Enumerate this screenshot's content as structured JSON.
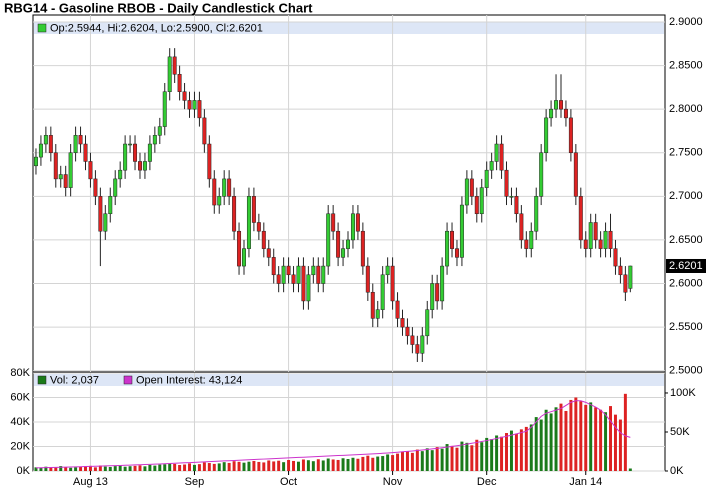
{
  "chart_data": [
    {
      "type": "candlestick",
      "title": "RBG14 - Gasoline RBOB - Daily Candlestick Chart",
      "legend_label": "Op:2.5944, Hi:2.6204, Lo:2.5900, Cl:2.6201",
      "last_label": "2.6201",
      "up_color": "#33cc33",
      "down_color": "#dd2222",
      "grid": true,
      "xlim": [
        -0.6,
        127
      ],
      "ylim": [
        2.4985,
        2.908
      ],
      "yticks": [
        {
          "value": 2.9,
          "label": "2.9000"
        },
        {
          "value": 2.85,
          "label": "2.8500"
        },
        {
          "value": 2.8,
          "label": "2.8000"
        },
        {
          "value": 2.75,
          "label": "2.7500"
        },
        {
          "value": 2.7,
          "label": "2.7000"
        },
        {
          "value": 2.65,
          "label": "2.6500"
        },
        {
          "value": 2.6,
          "label": "2.6000"
        },
        {
          "value": 2.55,
          "label": "2.5500"
        },
        {
          "value": 2.5,
          "label": "2.5000"
        }
      ],
      "open": [
        2.735,
        2.745,
        2.76,
        2.77,
        2.75,
        2.72,
        2.725,
        2.71,
        2.75,
        2.77,
        2.76,
        2.74,
        2.72,
        2.7,
        2.66,
        2.68,
        2.7,
        2.72,
        2.73,
        2.76,
        2.76,
        2.74,
        2.73,
        2.74,
        2.76,
        2.77,
        2.78,
        2.82,
        2.86,
        2.84,
        2.82,
        2.81,
        2.8,
        2.81,
        2.79,
        2.76,
        2.72,
        2.69,
        2.7,
        2.72,
        2.7,
        2.66,
        2.62,
        2.64,
        2.7,
        2.67,
        2.66,
        2.64,
        2.63,
        2.61,
        2.6,
        2.62,
        2.61,
        2.6,
        2.62,
        2.58,
        2.61,
        2.62,
        2.6,
        2.62,
        2.68,
        2.66,
        2.63,
        2.64,
        2.65,
        2.68,
        2.66,
        2.62,
        2.59,
        2.56,
        2.57,
        2.61,
        2.62,
        2.58,
        2.56,
        2.55,
        2.54,
        2.53,
        2.52,
        2.54,
        2.57,
        2.6,
        2.58,
        2.62,
        2.66,
        2.64,
        2.63,
        2.69,
        2.72,
        2.7,
        2.68,
        2.71,
        2.73,
        2.74,
        2.76,
        2.73,
        2.7,
        2.7,
        2.68,
        2.65,
        2.64,
        2.66,
        2.7,
        2.75,
        2.79,
        2.8,
        2.81,
        2.8,
        2.79,
        2.75,
        2.7,
        2.65,
        2.64,
        2.67,
        2.65,
        2.64,
        2.66,
        2.64,
        2.62,
        2.61,
        2.5944
      ],
      "high": [
        2.755,
        2.77,
        2.78,
        2.78,
        2.76,
        2.735,
        2.735,
        2.76,
        2.78,
        2.78,
        2.77,
        2.75,
        2.73,
        2.71,
        2.69,
        2.71,
        2.73,
        2.74,
        2.77,
        2.77,
        2.77,
        2.75,
        2.75,
        2.77,
        2.78,
        2.79,
        2.83,
        2.87,
        2.87,
        2.85,
        2.83,
        2.82,
        2.82,
        2.82,
        2.8,
        2.77,
        2.73,
        2.71,
        2.73,
        2.73,
        2.71,
        2.67,
        2.65,
        2.71,
        2.71,
        2.68,
        2.67,
        2.65,
        2.64,
        2.62,
        2.63,
        2.63,
        2.62,
        2.63,
        2.63,
        2.62,
        2.63,
        2.63,
        2.63,
        2.69,
        2.69,
        2.67,
        2.65,
        2.66,
        2.69,
        2.69,
        2.67,
        2.63,
        2.6,
        2.58,
        2.62,
        2.63,
        2.63,
        2.59,
        2.57,
        2.56,
        2.55,
        2.54,
        2.55,
        2.58,
        2.61,
        2.61,
        2.63,
        2.67,
        2.67,
        2.65,
        2.7,
        2.73,
        2.73,
        2.71,
        2.72,
        2.74,
        2.75,
        2.77,
        2.77,
        2.74,
        2.71,
        2.71,
        2.69,
        2.66,
        2.67,
        2.71,
        2.76,
        2.8,
        2.81,
        2.84,
        2.84,
        2.81,
        2.8,
        2.76,
        2.71,
        2.66,
        2.68,
        2.68,
        2.66,
        2.67,
        2.68,
        2.65,
        2.63,
        2.62,
        2.6204
      ],
      "low": [
        2.725,
        2.735,
        2.75,
        2.74,
        2.71,
        2.71,
        2.7,
        2.7,
        2.74,
        2.75,
        2.73,
        2.71,
        2.69,
        2.62,
        2.65,
        2.67,
        2.69,
        2.71,
        2.72,
        2.75,
        2.73,
        2.72,
        2.72,
        2.73,
        2.75,
        2.76,
        2.77,
        2.81,
        2.83,
        2.81,
        2.8,
        2.79,
        2.79,
        2.78,
        2.75,
        2.71,
        2.68,
        2.68,
        2.69,
        2.69,
        2.65,
        2.61,
        2.61,
        2.63,
        2.66,
        2.65,
        2.63,
        2.62,
        2.6,
        2.59,
        2.59,
        2.6,
        2.59,
        2.59,
        2.57,
        2.57,
        2.6,
        2.59,
        2.59,
        2.61,
        2.65,
        2.62,
        2.62,
        2.63,
        2.64,
        2.65,
        2.61,
        2.58,
        2.55,
        2.55,
        2.56,
        2.6,
        2.57,
        2.55,
        2.54,
        2.53,
        2.52,
        2.51,
        2.51,
        2.53,
        2.56,
        2.57,
        2.57,
        2.61,
        2.63,
        2.62,
        2.62,
        2.68,
        2.69,
        2.67,
        2.67,
        2.7,
        2.72,
        2.73,
        2.72,
        2.69,
        2.69,
        2.67,
        2.64,
        2.63,
        2.63,
        2.65,
        2.69,
        2.74,
        2.78,
        2.79,
        2.79,
        2.78,
        2.74,
        2.69,
        2.64,
        2.63,
        2.63,
        2.64,
        2.63,
        2.63,
        2.63,
        2.61,
        2.6,
        2.58,
        2.59
      ],
      "close": [
        2.745,
        2.76,
        2.77,
        2.75,
        2.72,
        2.725,
        2.71,
        2.75,
        2.77,
        2.76,
        2.74,
        2.72,
        2.7,
        2.66,
        2.68,
        2.7,
        2.72,
        2.73,
        2.76,
        2.76,
        2.74,
        2.73,
        2.74,
        2.76,
        2.77,
        2.78,
        2.82,
        2.86,
        2.84,
        2.82,
        2.81,
        2.8,
        2.81,
        2.79,
        2.76,
        2.72,
        2.69,
        2.7,
        2.72,
        2.7,
        2.66,
        2.62,
        2.64,
        2.7,
        2.67,
        2.66,
        2.64,
        2.63,
        2.61,
        2.6,
        2.62,
        2.61,
        2.6,
        2.62,
        2.58,
        2.61,
        2.62,
        2.6,
        2.62,
        2.68,
        2.66,
        2.63,
        2.64,
        2.65,
        2.68,
        2.66,
        2.62,
        2.59,
        2.56,
        2.57,
        2.61,
        2.62,
        2.58,
        2.56,
        2.55,
        2.54,
        2.53,
        2.52,
        2.54,
        2.57,
        2.6,
        2.58,
        2.62,
        2.66,
        2.64,
        2.63,
        2.69,
        2.72,
        2.7,
        2.68,
        2.71,
        2.73,
        2.74,
        2.76,
        2.73,
        2.7,
        2.7,
        2.68,
        2.65,
        2.64,
        2.66,
        2.7,
        2.75,
        2.79,
        2.8,
        2.81,
        2.8,
        2.79,
        2.75,
        2.7,
        2.65,
        2.64,
        2.67,
        2.65,
        2.64,
        2.66,
        2.64,
        2.62,
        2.61,
        2.59,
        2.6201
      ]
    },
    {
      "type": "bar",
      "up_color": "#1a7a1a",
      "down_color": "#dd2222",
      "xlim": [
        -0.6,
        127
      ],
      "xticks": [
        {
          "value": 11,
          "label": "Aug 13"
        },
        {
          "value": 32,
          "label": "Sep"
        },
        {
          "value": 51,
          "label": "Oct"
        },
        {
          "value": 72,
          "label": "Nov"
        },
        {
          "value": 91,
          "label": "Dec"
        },
        {
          "value": 111,
          "label": "Jan 14"
        }
      ],
      "ylim": [
        0,
        80000
      ],
      "yticks": [
        {
          "value": 0,
          "label": "0K"
        },
        {
          "value": 20000,
          "label": "20K"
        },
        {
          "value": 40000,
          "label": "40K"
        },
        {
          "value": 60000,
          "label": "60K"
        },
        {
          "value": 80000,
          "label": "80K"
        }
      ],
      "y2lim": [
        0,
        125600
      ],
      "y2ticks": [
        {
          "value": 0,
          "label": "0K"
        },
        {
          "value": 50000,
          "label": "50K"
        },
        {
          "value": 100000,
          "label": "100K"
        }
      ],
      "series": [
        {
          "name": "Vol: 2,037",
          "color": "#1a7a1a",
          "values": [
            3000,
            2500,
            3500,
            3000,
            2800,
            4000,
            3200,
            2600,
            3000,
            3500,
            3800,
            4200,
            3000,
            4500,
            3600,
            3300,
            4000,
            4800,
            3500,
            3900,
            4200,
            4600,
            3800,
            5000,
            4400,
            5200,
            5500,
            6000,
            5800,
            4900,
            5300,
            6200,
            5000,
            5600,
            7000,
            6500,
            5800,
            6200,
            7200,
            6600,
            8000,
            7500,
            6800,
            7600,
            8200,
            7400,
            7000,
            8600,
            7800,
            8400,
            7200,
            9000,
            8200,
            7600,
            9400,
            8800,
            8000,
            9600,
            8600,
            10200,
            9400,
            9000,
            10400,
            9800,
            10800,
            10000,
            11500,
            12500,
            10800,
            11800,
            12200,
            13500,
            13000,
            14200,
            15500,
            16000,
            14800,
            17500,
            16200,
            18500,
            17000,
            19500,
            18200,
            22000,
            20500,
            19000,
            24000,
            23000,
            21000,
            25500,
            23500,
            27000,
            26000,
            29000,
            28000,
            31000,
            33000,
            30500,
            34000,
            36000,
            38000,
            44000,
            42000,
            50000,
            47000,
            52000,
            55000,
            49000,
            58000,
            60000,
            57000,
            54000,
            56000,
            52000,
            50000,
            48000,
            53000,
            46000,
            42000,
            63000,
            2037
          ]
        },
        {
          "name": "Open Interest: 43,124",
          "color": "#cc33cc",
          "axis": "y2",
          "values": [
            4000,
            4200,
            4300,
            4500,
            4600,
            4800,
            5000,
            5100,
            5300,
            5500,
            5700,
            5900,
            6100,
            6300,
            6500,
            6700,
            6900,
            7100,
            7300,
            7600,
            7800,
            8000,
            8300,
            8500,
            8800,
            9000,
            9300,
            9600,
            9900,
            10200,
            10500,
            10800,
            11100,
            11400,
            11700,
            12000,
            12300,
            12600,
            12900,
            13200,
            13500,
            13800,
            14100,
            14400,
            14700,
            15000,
            15300,
            15600,
            15900,
            16200,
            16500,
            16800,
            17100,
            17400,
            17700,
            18000,
            18300,
            18600,
            18900,
            19200,
            19500,
            19800,
            20100,
            20400,
            20700,
            21000,
            21300,
            21600,
            21900,
            22300,
            22700,
            23100,
            23600,
            24100,
            24600,
            25100,
            25700,
            26300,
            26900,
            27600,
            28300,
            29000,
            29800,
            30600,
            31500,
            32400,
            33400,
            34400,
            35500,
            36600,
            37800,
            39000,
            40300,
            41600,
            43000,
            44500,
            46000,
            47600,
            49200,
            50900,
            56000,
            63000,
            70000,
            74000,
            76000,
            78000,
            80000,
            84000,
            88000,
            90000,
            90000,
            88000,
            85000,
            82000,
            78000,
            72000,
            64000,
            56000,
            49000,
            45000,
            43124
          ]
        }
      ]
    }
  ]
}
